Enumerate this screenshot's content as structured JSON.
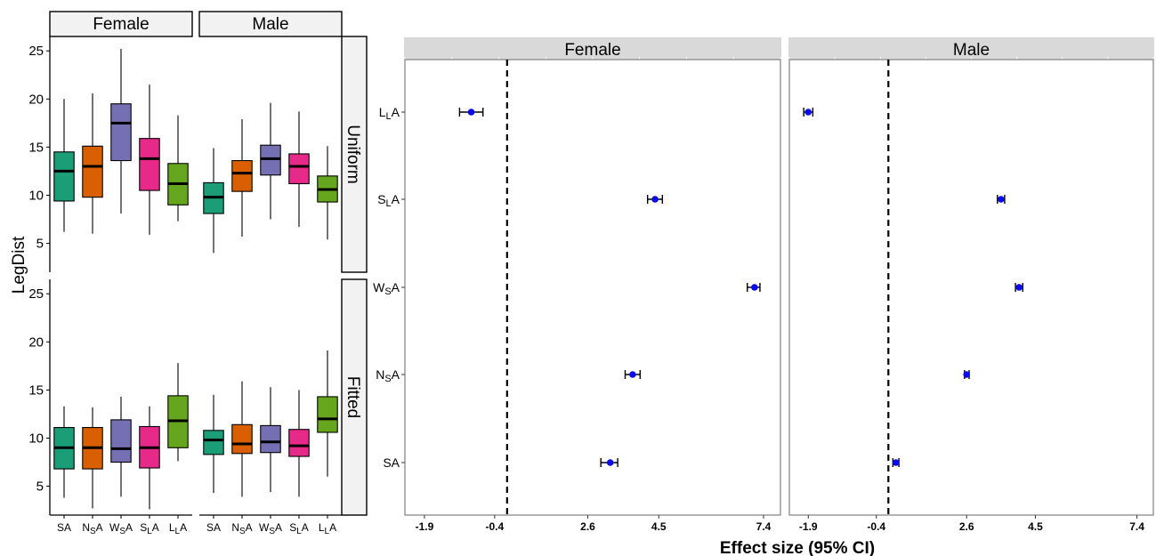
{
  "colors": {
    "groups": [
      "#1b9e77",
      "#d95f02",
      "#7570b3",
      "#e7298a",
      "#66a61e"
    ],
    "point": "#0a0aef",
    "strip_left": "#f2f2f2",
    "strip_right": "#d9d9d9"
  },
  "chart_data": [
    {
      "type": "boxplot",
      "ylabel": "LegDist",
      "ylim": [
        2,
        26.5
      ],
      "yticks": [
        "5",
        "10",
        "15",
        "20",
        "25"
      ],
      "column_facets": [
        "Female",
        "Male"
      ],
      "row_facets": [
        "Uniform",
        "Fitted"
      ],
      "categories": [
        {
          "main": "S",
          "sub": "",
          "suffix": "A"
        },
        {
          "main": "N",
          "sub": "S",
          "suffix": "A"
        },
        {
          "main": "W",
          "sub": "S",
          "suffix": "A"
        },
        {
          "main": "S",
          "sub": "L",
          "suffix": "A"
        },
        {
          "main": "L",
          "sub": "L",
          "suffix": "A"
        }
      ],
      "panels": [
        {
          "column": "Female",
          "row": "Uniform",
          "boxes": [
            {
              "min": 6.2,
              "q1": 9.4,
              "median": 12.5,
              "q3": 14.5,
              "max": 20.0
            },
            {
              "min": 6.0,
              "q1": 9.8,
              "median": 13.0,
              "q3": 15.1,
              "max": 20.6
            },
            {
              "min": 8.1,
              "q1": 13.6,
              "median": 17.5,
              "q3": 19.5,
              "max": 25.2
            },
            {
              "min": 5.9,
              "q1": 10.5,
              "median": 13.8,
              "q3": 15.9,
              "max": 21.5
            },
            {
              "min": 7.3,
              "q1": 9.0,
              "median": 11.2,
              "q3": 13.3,
              "max": 18.3
            }
          ]
        },
        {
          "column": "Male",
          "row": "Uniform",
          "boxes": [
            {
              "min": 4.0,
              "q1": 8.1,
              "median": 9.8,
              "q3": 11.3,
              "max": 14.9
            },
            {
              "min": 5.7,
              "q1": 10.4,
              "median": 12.3,
              "q3": 13.6,
              "max": 17.9
            },
            {
              "min": 7.5,
              "q1": 12.1,
              "median": 13.8,
              "q3": 15.2,
              "max": 19.6
            },
            {
              "min": 6.7,
              "q1": 11.2,
              "median": 13.0,
              "q3": 14.3,
              "max": 18.7
            },
            {
              "min": 5.4,
              "q1": 9.3,
              "median": 10.6,
              "q3": 12.0,
              "max": 15.1
            }
          ]
        },
        {
          "column": "Female",
          "row": "Fitted",
          "boxes": [
            {
              "min": 3.8,
              "q1": 6.8,
              "median": 9.0,
              "q3": 11.1,
              "max": 13.3
            },
            {
              "min": 2.7,
              "q1": 6.8,
              "median": 9.0,
              "q3": 11.1,
              "max": 13.2
            },
            {
              "min": 3.9,
              "q1": 7.5,
              "median": 8.9,
              "q3": 11.9,
              "max": 14.3
            },
            {
              "min": 2.6,
              "q1": 6.9,
              "median": 9.0,
              "q3": 11.2,
              "max": 13.3
            },
            {
              "min": 7.6,
              "q1": 9.0,
              "median": 11.8,
              "q3": 14.4,
              "max": 17.8
            }
          ]
        },
        {
          "column": "Male",
          "row": "Fitted",
          "boxes": [
            {
              "min": 4.3,
              "q1": 8.3,
              "median": 9.8,
              "q3": 10.8,
              "max": 14.5
            },
            {
              "min": 3.9,
              "q1": 8.4,
              "median": 9.4,
              "q3": 11.4,
              "max": 15.9
            },
            {
              "min": 4.4,
              "q1": 8.5,
              "median": 9.6,
              "q3": 11.3,
              "max": 15.3
            },
            {
              "min": 3.9,
              "q1": 8.1,
              "median": 9.2,
              "q3": 10.9,
              "max": 15.0
            },
            {
              "min": 6.0,
              "q1": 10.6,
              "median": 12.0,
              "q3": 14.3,
              "max": 19.1
            }
          ]
        }
      ]
    },
    {
      "type": "forest",
      "xlabel": "Effect size (95% CI)",
      "column_facets": [
        "Female",
        "Male"
      ],
      "xticks": [
        -1.9,
        -0.4,
        2.6,
        4.5,
        7.4
      ],
      "xtick_labels": [
        "-1.9",
        "-0.4",
        "2.6",
        "4.5",
        "7.4"
      ],
      "reference_line": 0,
      "rows": [
        {
          "main": "L",
          "sub": "L",
          "suffix": "A"
        },
        {
          "main": "S",
          "sub": "L",
          "suffix": "A"
        },
        {
          "main": "W",
          "sub": "S",
          "suffix": "A"
        },
        {
          "main": "N",
          "sub": "S",
          "suffix": "A"
        },
        {
          "main": "S",
          "sub": "",
          "suffix": "A"
        }
      ],
      "panels": [
        {
          "column": "Female",
          "points": [
            {
              "estimate": -0.9,
              "lower": -1.15,
              "upper": -0.65
            },
            {
              "estimate": 4.4,
              "lower": 4.2,
              "upper": 4.6
            },
            {
              "estimate": 7.15,
              "lower": 6.95,
              "upper": 7.3
            },
            {
              "estimate": 3.8,
              "lower": 3.6,
              "upper": 4.0
            },
            {
              "estimate": 3.2,
              "lower": 2.95,
              "upper": 3.4
            }
          ]
        },
        {
          "column": "Male",
          "points": [
            {
              "estimate": -1.9,
              "lower": -2.0,
              "upper": -1.8
            },
            {
              "estimate": 3.55,
              "lower": 3.45,
              "upper": 3.65
            },
            {
              "estimate": 4.05,
              "lower": 3.95,
              "upper": 4.15
            },
            {
              "estimate": 2.6,
              "lower": 2.53,
              "upper": 2.67
            },
            {
              "estimate": 0.25,
              "lower": 0.15,
              "upper": 0.35
            }
          ]
        }
      ]
    }
  ]
}
